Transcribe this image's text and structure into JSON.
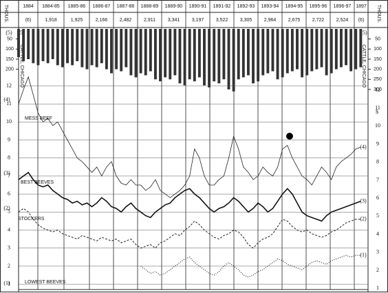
{
  "header": {
    "unit": "THOUS.",
    "periods": [
      "1884",
      "1884-85",
      "1885-86",
      "1886-87",
      "1887-88",
      "1888-89",
      "1889-90",
      "1890-91",
      "1891-92",
      "1892-93",
      "1893-94",
      "1894-95",
      "1895-96",
      "1896-97",
      "1897"
    ],
    "totals": [
      "(6)",
      "1,918",
      "1,925",
      "2,166",
      "2,482",
      "2,911",
      "3,341",
      "3,197",
      "3,522",
      "3,305",
      "2,964",
      "2,675",
      "2,722",
      "2,524",
      "(6)"
    ]
  },
  "chart_data": [
    {
      "type": "bar",
      "title": "CATTLE, CHICAGO",
      "marker": "(5)",
      "color": "#333333",
      "xlim": [
        1884,
        1898.3
      ],
      "ylim": [
        0,
        320
      ],
      "inverted": true,
      "yticks": [
        50,
        100,
        150,
        200,
        250,
        300
      ],
      "yticks_left": [
        50,
        100,
        150,
        200
      ],
      "x": [
        1884.0,
        1884.2,
        1884.4,
        1884.6,
        1884.8,
        1885.0,
        1885.2,
        1885.4,
        1885.6,
        1885.8,
        1886.0,
        1886.2,
        1886.4,
        1886.6,
        1886.8,
        1887.0,
        1887.2,
        1887.4,
        1887.6,
        1887.8,
        1888.0,
        1888.2,
        1888.4,
        1888.6,
        1888.8,
        1889.0,
        1889.2,
        1889.4,
        1889.6,
        1889.8,
        1890.0,
        1890.2,
        1890.4,
        1890.6,
        1890.8,
        1891.0,
        1891.2,
        1891.4,
        1891.6,
        1891.8,
        1892.0,
        1892.2,
        1892.4,
        1892.6,
        1892.8,
        1893.0,
        1893.2,
        1893.4,
        1893.6,
        1893.8,
        1894.0,
        1894.2,
        1894.4,
        1894.6,
        1894.8,
        1895.0,
        1895.2,
        1895.4,
        1895.6,
        1895.8,
        1896.0,
        1896.2,
        1896.4,
        1896.6,
        1896.8,
        1897.0,
        1897.2,
        1897.4,
        1897.6,
        1897.8,
        1898.0
      ],
      "values": [
        140,
        160,
        150,
        170,
        180,
        160,
        170,
        150,
        180,
        190,
        170,
        180,
        160,
        190,
        200,
        180,
        190,
        170,
        200,
        220,
        200,
        210,
        190,
        230,
        240,
        220,
        230,
        210,
        250,
        260,
        240,
        250,
        230,
        270,
        280,
        250,
        260,
        240,
        280,
        290,
        260,
        270,
        250,
        300,
        310,
        250,
        240,
        230,
        270,
        260,
        230,
        220,
        210,
        250,
        240,
        220,
        210,
        200,
        240,
        230,
        210,
        200,
        190,
        230,
        220,
        200,
        190,
        180,
        210,
        200,
        190
      ]
    },
    {
      "type": "line",
      "ylabel": "$",
      "xlim": [
        1884,
        1898.3
      ],
      "ylim": [
        0.7,
        12.7
      ],
      "yticks": [
        1,
        2,
        3,
        4,
        5,
        6,
        7,
        8,
        9,
        10,
        11,
        12
      ],
      "grid": true,
      "x": [
        1884.0,
        1884.2,
        1884.4,
        1884.6,
        1884.8,
        1885.0,
        1885.2,
        1885.4,
        1885.6,
        1885.8,
        1886.0,
        1886.2,
        1886.4,
        1886.6,
        1886.8,
        1887.0,
        1887.2,
        1887.4,
        1887.6,
        1887.8,
        1888.0,
        1888.2,
        1888.4,
        1888.6,
        1888.8,
        1889.0,
        1889.2,
        1889.4,
        1889.6,
        1889.8,
        1890.0,
        1890.2,
        1890.4,
        1890.6,
        1890.8,
        1891.0,
        1891.2,
        1891.4,
        1891.6,
        1891.8,
        1892.0,
        1892.2,
        1892.4,
        1892.6,
        1892.8,
        1893.0,
        1893.2,
        1893.4,
        1893.6,
        1893.8,
        1894.0,
        1894.2,
        1894.4,
        1894.6,
        1894.8,
        1895.0,
        1895.2,
        1895.4,
        1895.6,
        1895.8,
        1896.0,
        1896.2,
        1896.4,
        1896.6,
        1896.8,
        1897.0,
        1897.2,
        1897.4,
        1897.6,
        1897.8,
        1898.0
      ],
      "series": [
        {
          "name": "MESS BEEF",
          "marker": "(4)",
          "color": "#222222",
          "style": "solid",
          "width": 0.8,
          "values": [
            11,
            11.8,
            12.5,
            11.5,
            10.5,
            10,
            10.2,
            9.8,
            10,
            9.5,
            9,
            8.5,
            8,
            7.8,
            7.5,
            7.2,
            7.5,
            7,
            7.5,
            7.8,
            7,
            6.6,
            6.5,
            6.8,
            6.5,
            6.5,
            6.2,
            6.4,
            6.8,
            6.2,
            6,
            5.8,
            6,
            6.2,
            6.5,
            7,
            8.5,
            8,
            7,
            6.5,
            6.5,
            6.8,
            7,
            8,
            9.2,
            8.5,
            7.5,
            7.2,
            6.8,
            7,
            7.5,
            7.2,
            7,
            7.5,
            8.5,
            8.7,
            8,
            7.5,
            7,
            6.8,
            6.5,
            7,
            7.5,
            7.2,
            6.8,
            7.5,
            7.8,
            8,
            8.2,
            8.5,
            8.6
          ]
        },
        {
          "name": "BEST BEEVES",
          "marker": "(3)",
          "color": "#111111",
          "style": "solid",
          "width": 1.6,
          "values": [
            6.8,
            7,
            7.2,
            6.8,
            6.5,
            6.4,
            6.5,
            6.2,
            6,
            5.8,
            5.7,
            5.5,
            5.6,
            5.4,
            5.5,
            5.3,
            5.5,
            5.8,
            5.6,
            5.3,
            5.2,
            5,
            5.3,
            5.5,
            5.2,
            5,
            4.8,
            4.7,
            5,
            5.2,
            5.4,
            5.5,
            5.8,
            6,
            6.2,
            6.3,
            6,
            5.8,
            5.5,
            5.2,
            5,
            5.2,
            5.3,
            5.5,
            5.8,
            5.6,
            5.3,
            5,
            5.2,
            5.5,
            5.3,
            5,
            5.2,
            5.6,
            6,
            6.3,
            6,
            5.5,
            5,
            4.8,
            4.7,
            4.6,
            4.5,
            4.8,
            5,
            5.1,
            5.2,
            5.3,
            5.4,
            5.5,
            5.6
          ]
        },
        {
          "name": "STOCKERS",
          "marker": "(2)",
          "color": "#222222",
          "style": "dashed",
          "width": 1,
          "values": [
            5,
            5.2,
            5,
            4.6,
            4.3,
            4.1,
            4,
            3.9,
            4,
            3.8,
            3.7,
            3.6,
            3.5,
            3.7,
            3.6,
            3.5,
            3.4,
            3.6,
            3.5,
            3.4,
            3.5,
            3.3,
            3.4,
            3.5,
            3.2,
            3,
            3.1,
            3.2,
            3,
            3.3,
            3.4,
            3.6,
            3.8,
            3.7,
            4,
            4.2,
            4.5,
            4.3,
            4,
            3.8,
            3.6,
            3.5,
            3.7,
            3.8,
            4,
            3.9,
            3.6,
            3.2,
            3,
            3.3,
            3.5,
            3.6,
            3.8,
            4.2,
            4.6,
            4.5,
            4.2,
            4,
            3.9,
            4,
            3.8,
            3.7,
            3.6,
            3.7,
            3.9,
            4,
            4.2,
            4.4,
            4.5,
            4.6,
            4.6
          ]
        },
        {
          "name": "LOWEST BEEVES",
          "marker": "(1)",
          "color": "#222222",
          "style": "dotted",
          "width": 1.2,
          "values": [
            null,
            null,
            null,
            null,
            null,
            null,
            null,
            null,
            null,
            null,
            null,
            null,
            null,
            null,
            null,
            null,
            null,
            null,
            null,
            null,
            null,
            null,
            null,
            null,
            null,
            2,
            1.8,
            1.6,
            1.7,
            1.5,
            1.6,
            1.8,
            2,
            2.2,
            2.4,
            2.5,
            2.2,
            2,
            1.8,
            1.6,
            1.5,
            1.7,
            2,
            2.2,
            2,
            1.8,
            1.5,
            1.4,
            1.5,
            1.7,
            1.8,
            2,
            2.2,
            2.4,
            2.3,
            2.1,
            2,
            1.9,
            1.8,
            2,
            2.2,
            2.3,
            2.2,
            2.1,
            2.3,
            2.4,
            2.5,
            2.6,
            2.5,
            2.6,
            2.6
          ]
        }
      ]
    }
  ]
}
